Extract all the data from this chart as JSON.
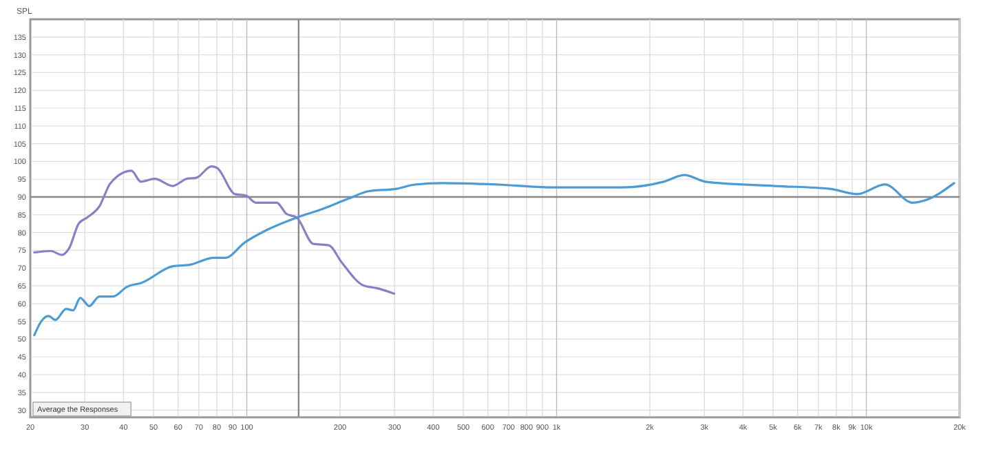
{
  "chart_data": {
    "type": "line",
    "ylabel": "SPL",
    "xlim": [
      20,
      20000
    ],
    "log": "x",
    "xticks": [
      20,
      30,
      40,
      50,
      60,
      70,
      80,
      90,
      100,
      200,
      300,
      400,
      500,
      600,
      700,
      800,
      900,
      {
        "value": 1000,
        "label": "1k"
      },
      {
        "value": 2000,
        "label": "2k"
      },
      {
        "value": 3000,
        "label": "3k"
      },
      {
        "value": 4000,
        "label": "4k"
      },
      {
        "value": 5000,
        "label": "5k"
      },
      {
        "value": 6000,
        "label": "6k"
      },
      {
        "value": 7000,
        "label": "7k"
      },
      {
        "value": 8000,
        "label": "8k"
      },
      {
        "value": 9000,
        "label": "9k"
      },
      {
        "value": 10000,
        "label": "10k"
      },
      {
        "value": 20000,
        "label": "20k"
      }
    ],
    "ylim": [
      28,
      140
    ],
    "yticks": [
      30,
      35,
      40,
      45,
      50,
      55,
      60,
      65,
      70,
      75,
      80,
      85,
      90,
      95,
      100,
      105,
      110,
      115,
      120,
      125,
      130,
      135
    ],
    "grid": true,
    "line_style": "solid",
    "marker": "none",
    "ref_lines": [
      {
        "axis": "y",
        "value": 90
      },
      {
        "axis": "x",
        "value": 147
      }
    ],
    "annotations": [
      "Average the Responses"
    ],
    "series": [
      {
        "color": "#8a7fc4",
        "x": [
          20.6,
          23.3,
          25.3,
          26.7,
          28.7,
          30.5,
          33.4,
          36.3,
          42.4,
          45.5,
          50.4,
          57.7,
          63.9,
          68.7,
          76.9,
          80.1,
          91.6,
          99.4,
          107,
          125,
          134,
          145,
          164,
          184,
          202,
          238,
          264,
          299
        ],
        "values": [
          74.4,
          74.8,
          73.7,
          75.6,
          82.6,
          84.2,
          87.3,
          93.9,
          97.4,
          94.3,
          95.1,
          93.1,
          95.1,
          95.4,
          98.6,
          98.2,
          90.8,
          90.4,
          88.4,
          88.4,
          85.3,
          84.2,
          76.8,
          76.4,
          71.7,
          65.1,
          64.3,
          62.8
        ]
      },
      {
        "color": "#4a9bd6",
        "x": [
          20.6,
          21.7,
          22.9,
          24.1,
          26.1,
          27.5,
          29.0,
          31.0,
          33.4,
          37.0,
          41.0,
          45.9,
          57.7,
          65.2,
          78.4,
          85.2,
          98.5,
          116,
          145,
          174,
          214,
          247,
          305,
          349,
          427,
          644,
          974,
          1628,
          2217,
          2588,
          3020,
          5047,
          7608,
          9354,
          11480,
          14100,
          15620,
          19200
        ],
        "values": [
          51.1,
          55,
          56.5,
          55.4,
          58.5,
          58.1,
          61.6,
          59.3,
          62,
          62,
          64.7,
          65.9,
          70.5,
          70.9,
          72.9,
          72.9,
          77.2,
          80.7,
          84.2,
          86.5,
          89.6,
          91.6,
          92.3,
          93.5,
          93.9,
          93.5,
          92.7,
          92.7,
          94.3,
          96.2,
          94.3,
          93.1,
          92.3,
          90.8,
          93.5,
          88.4,
          89.2,
          93.9
        ]
      }
    ]
  }
}
